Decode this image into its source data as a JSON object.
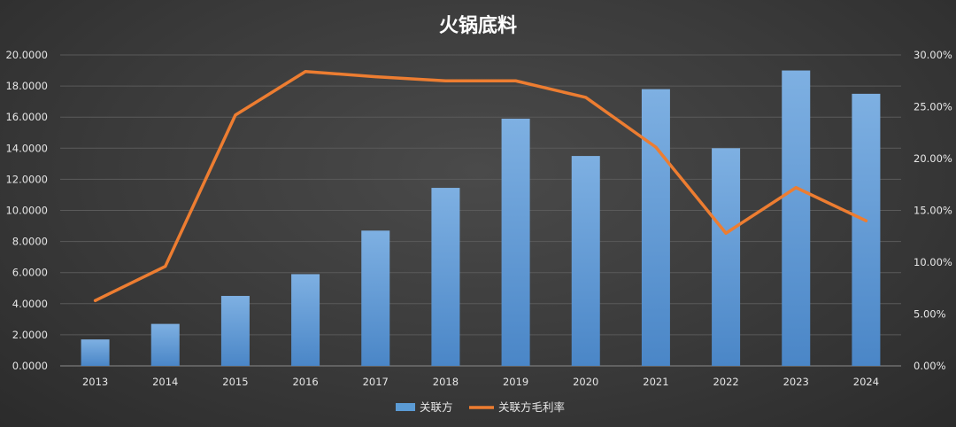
{
  "chart_data": {
    "type": "bar+line",
    "title": "火锅底料",
    "categories": [
      "2013",
      "2014",
      "2015",
      "2016",
      "2017",
      "2018",
      "2019",
      "2020",
      "2021",
      "2022",
      "2023",
      "2024"
    ],
    "series": [
      {
        "name": "关联方",
        "type": "bar",
        "axis": "left",
        "color": "#5b9bd5",
        "values": [
          1.7,
          2.7,
          4.5,
          5.9,
          8.7,
          11.45,
          15.9,
          13.5,
          17.8,
          14.0,
          19.0,
          17.5
        ]
      },
      {
        "name": "关联方毛利率",
        "type": "line",
        "axis": "right",
        "color": "#ed7d31",
        "values": [
          0.063,
          0.096,
          0.242,
          0.284,
          0.279,
          0.275,
          0.275,
          0.259,
          0.211,
          0.128,
          0.172,
          0.14
        ]
      }
    ],
    "y_left": {
      "min": 0,
      "max": 20,
      "step": 2,
      "ticks": [
        "0.0000",
        "2.0000",
        "4.0000",
        "6.0000",
        "8.0000",
        "10.0000",
        "12.0000",
        "14.0000",
        "16.0000",
        "18.0000",
        "20.0000"
      ]
    },
    "y_right": {
      "min": 0,
      "max": 0.3,
      "step": 0.05,
      "ticks": [
        "0.00%",
        "5.00%",
        "10.00%",
        "15.00%",
        "20.00%",
        "25.00%",
        "30.00%"
      ]
    },
    "grid": true,
    "legend_position": "bottom"
  }
}
